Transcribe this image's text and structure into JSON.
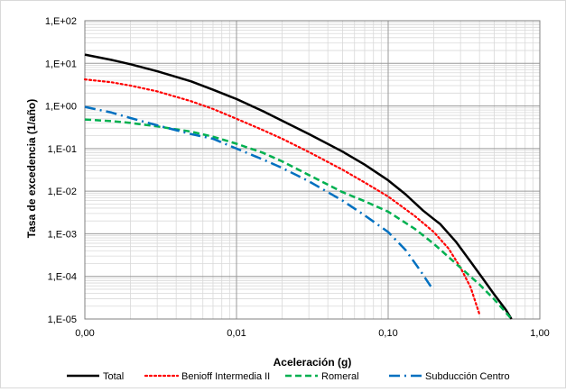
{
  "chart_data": {
    "type": "line",
    "title": "",
    "xlabel": "Aceleración (g)",
    "ylabel": "Tasa de excedencia (1/año)",
    "xscale": "log",
    "yscale": "log",
    "xlim": [
      0.001,
      1
    ],
    "ylim": [
      1e-05,
      100
    ],
    "x_tick_labels": [
      "0,00",
      "0,01",
      "0,10",
      "1,00"
    ],
    "x_tick_values": [
      0.001,
      0.01,
      0.1,
      1
    ],
    "y_tick_labels": [
      "1,E+02",
      "1,E+01",
      "1,E+00",
      "1,E-01",
      "1,E-02",
      "1,E-03",
      "1,E-04",
      "1,E-05"
    ],
    "y_tick_values": [
      100,
      10,
      1,
      0.1,
      0.01,
      0.001,
      0.0001,
      1e-05
    ],
    "grid": true,
    "legend_position": "bottom",
    "series": [
      {
        "name": "Total",
        "color": "#000000",
        "style": "solid",
        "x": [
          0.001,
          0.0015,
          0.002,
          0.003,
          0.005,
          0.007,
          0.01,
          0.015,
          0.02,
          0.03,
          0.05,
          0.07,
          0.1,
          0.13,
          0.17,
          0.2,
          0.22,
          0.28,
          0.35,
          0.42,
          0.5,
          0.6,
          0.65
        ],
        "y": [
          16,
          12,
          9.5,
          6.5,
          3.8,
          2.4,
          1.45,
          0.75,
          0.45,
          0.22,
          0.085,
          0.042,
          0.018,
          0.0085,
          0.0035,
          0.0022,
          0.0017,
          0.00065,
          0.00022,
          9e-05,
          3.8e-05,
          1.6e-05,
          1e-05
        ]
      },
      {
        "name": "Benioff Intermedia II",
        "color": "#ff0000",
        "style": "dotted",
        "x": [
          0.001,
          0.0015,
          0.002,
          0.003,
          0.005,
          0.007,
          0.01,
          0.015,
          0.02,
          0.03,
          0.05,
          0.07,
          0.1,
          0.15,
          0.2,
          0.25,
          0.3,
          0.35,
          0.4
        ],
        "y": [
          4.2,
          3.6,
          3.0,
          2.2,
          1.3,
          0.85,
          0.5,
          0.27,
          0.17,
          0.083,
          0.032,
          0.016,
          0.0075,
          0.0026,
          0.0011,
          0.00045,
          0.00016,
          5.5e-05,
          1.3e-05
        ]
      },
      {
        "name": "Romeral",
        "color": "#00b050",
        "style": "dashed",
        "x": [
          0.001,
          0.0015,
          0.002,
          0.003,
          0.005,
          0.007,
          0.01,
          0.015,
          0.02,
          0.03,
          0.05,
          0.07,
          0.1,
          0.15,
          0.2,
          0.3,
          0.4,
          0.5,
          0.6,
          0.65
        ],
        "y": [
          0.48,
          0.44,
          0.4,
          0.33,
          0.25,
          0.19,
          0.13,
          0.079,
          0.05,
          0.024,
          0.0095,
          0.0058,
          0.0033,
          0.0013,
          0.00058,
          0.00016,
          6.5e-05,
          2.9e-05,
          1.4e-05,
          1e-05
        ]
      },
      {
        "name": "Subducción Centro",
        "color": "#0070c0",
        "style": "dashdot",
        "x": [
          0.001,
          0.0015,
          0.002,
          0.003,
          0.005,
          0.007,
          0.01,
          0.015,
          0.02,
          0.03,
          0.05,
          0.07,
          0.1,
          0.13,
          0.16,
          0.19,
          0.2
        ],
        "y": [
          0.95,
          0.7,
          0.52,
          0.35,
          0.22,
          0.17,
          0.1,
          0.055,
          0.035,
          0.017,
          0.006,
          0.0027,
          0.0011,
          0.00042,
          0.00015,
          6e-05,
          5e-05
        ]
      }
    ]
  }
}
